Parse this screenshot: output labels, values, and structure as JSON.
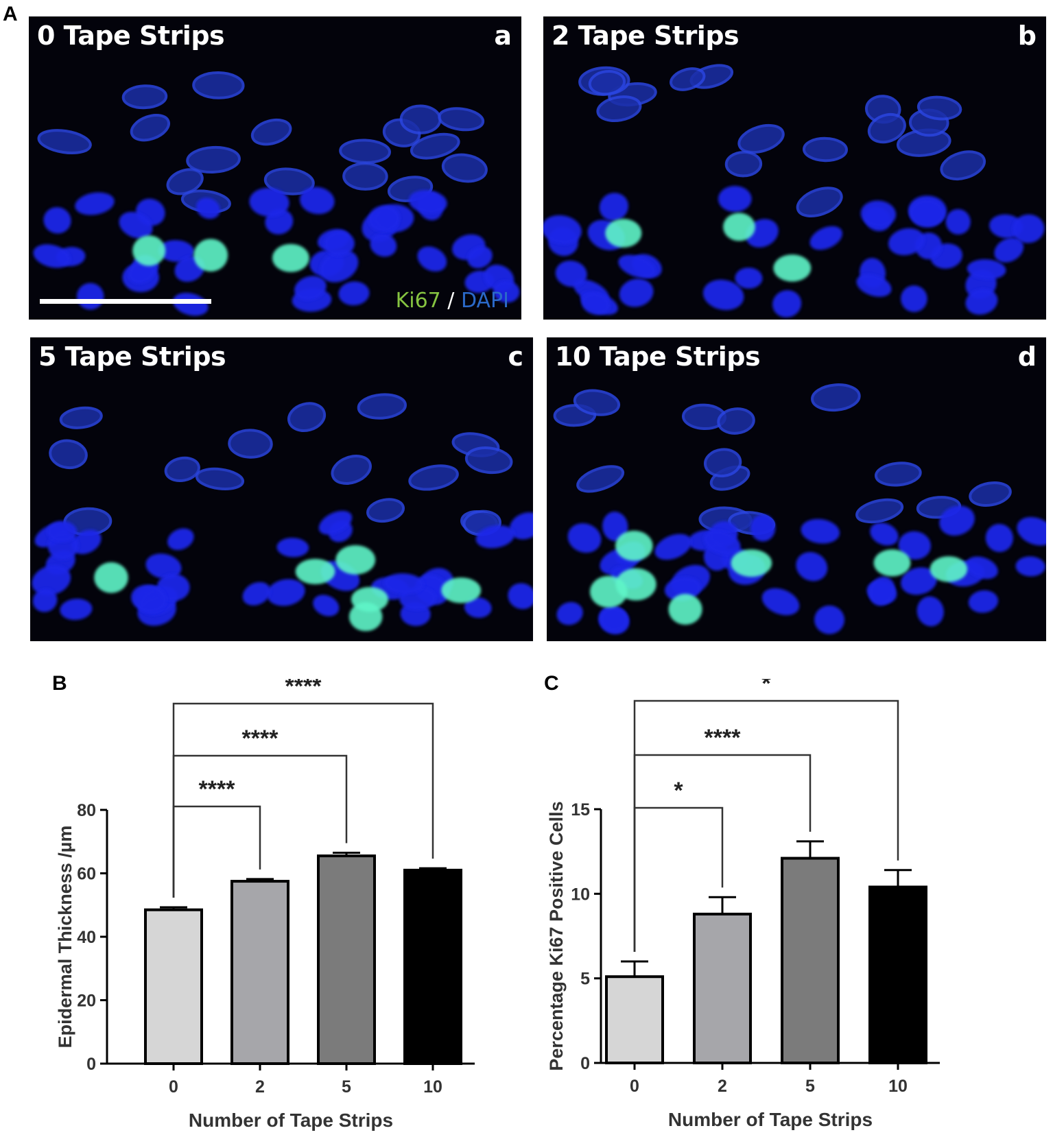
{
  "figure": {
    "panel_letters": [
      "A",
      "B",
      "C"
    ]
  },
  "micrographs": [
    {
      "title": "0 Tape Strips",
      "letter": "a"
    },
    {
      "title": "2 Tape Strips",
      "letter": "b"
    },
    {
      "title": "5 Tape Strips",
      "letter": "c"
    },
    {
      "title": "10 Tape Strips",
      "letter": "d"
    }
  ],
  "stain_legend": {
    "marker": "Ki67",
    "separator": " / ",
    "counterstain": "DAPI"
  },
  "colors": {
    "ki67": "#86c441",
    "dapi": "#2b69c9",
    "bar_0": "#d6d6d6",
    "bar_2": "#a6a6aa",
    "bar_5": "#7b7b7b",
    "bar_10": "#000000"
  },
  "chart_data": [
    {
      "type": "bar",
      "categories": [
        "0",
        "2",
        "5",
        "10"
      ],
      "values": [
        48.5,
        57.5,
        65.5,
        61.0
      ],
      "errors": [
        0.8,
        0.7,
        1.0,
        0.6
      ],
      "xlabel": "Number of Tape Strips",
      "ylabel": "Epidermal Thickness /µm",
      "ylim": [
        0,
        80
      ],
      "yticks": [
        0,
        20,
        40,
        60,
        80
      ],
      "significance": [
        {
          "from": 0,
          "to": 1,
          "label": "****"
        },
        {
          "from": 0,
          "to": 2,
          "label": "****"
        },
        {
          "from": 0,
          "to": 3,
          "label": "****"
        }
      ]
    },
    {
      "type": "bar",
      "categories": [
        "0",
        "2",
        "5",
        "10"
      ],
      "values": [
        5.1,
        8.8,
        12.1,
        10.4
      ],
      "errors": [
        0.9,
        1.0,
        1.0,
        1.0
      ],
      "xlabel": "Number of Tape Strips",
      "ylabel": "Percentage Ki67 Positive Cells",
      "ylim": [
        0,
        15
      ],
      "yticks": [
        0,
        5,
        10,
        15
      ],
      "significance": [
        {
          "from": 0,
          "to": 1,
          "label": "*"
        },
        {
          "from": 0,
          "to": 2,
          "label": "****"
        },
        {
          "from": 0,
          "to": 3,
          "label": "*"
        }
      ]
    }
  ]
}
